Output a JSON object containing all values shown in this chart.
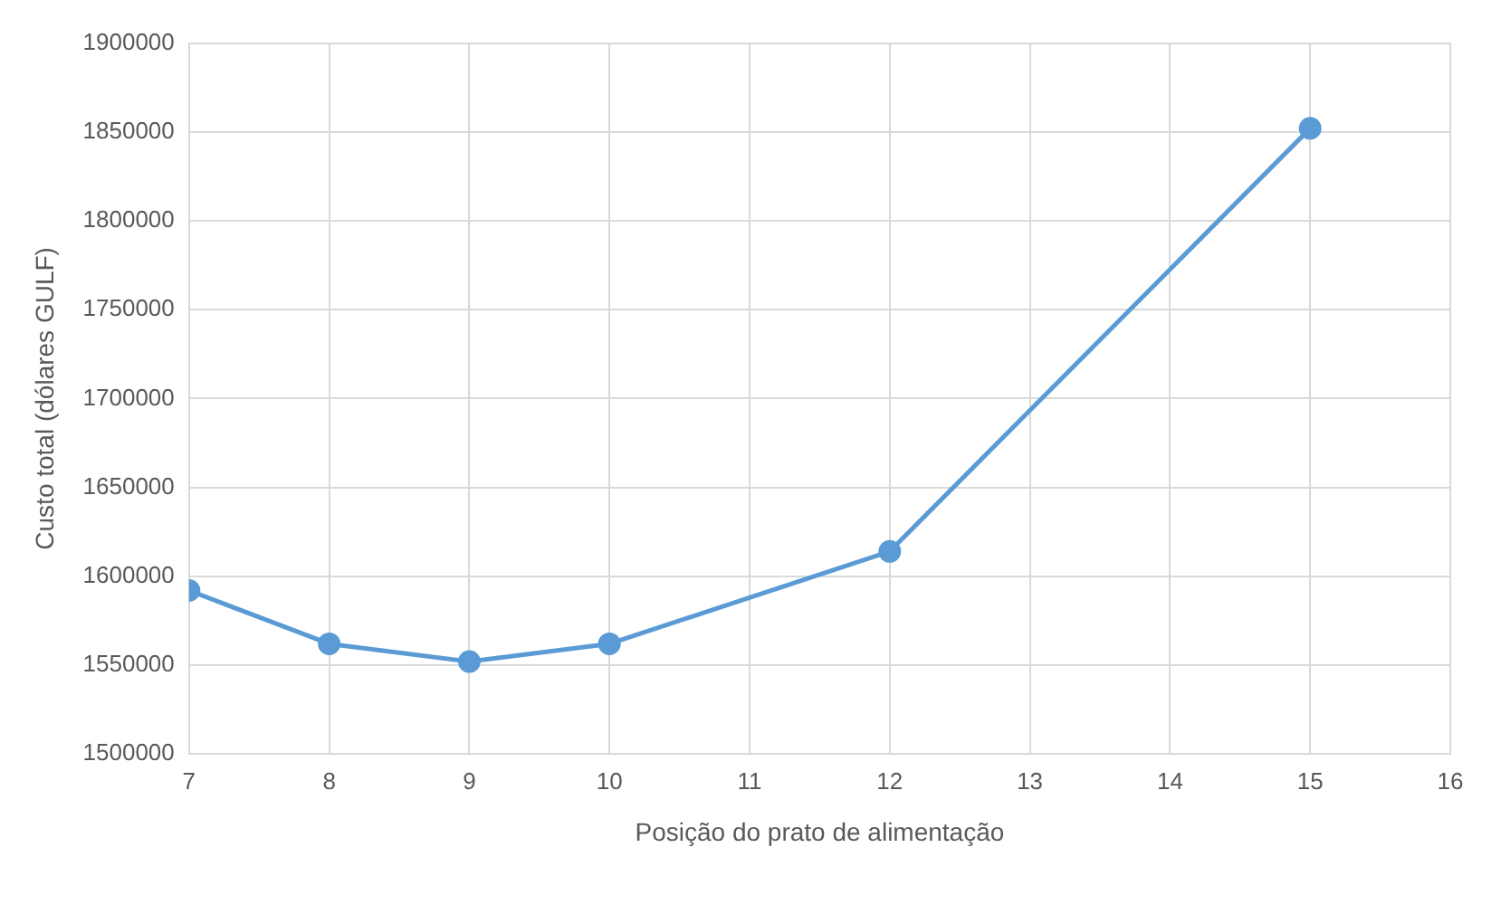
{
  "chart_data": {
    "type": "line",
    "xlabel": "Posição do prato de alimentação",
    "ylabel": "Custo total (dólares GULF)",
    "x": [
      7,
      8,
      9,
      10,
      12,
      15
    ],
    "series": [
      {
        "color": "#5b9bd5",
        "values": [
          1592000,
          1562000,
          1552000,
          1562000,
          1614000,
          1852000
        ]
      }
    ],
    "xlim": [
      7,
      16
    ],
    "xticks": [
      7,
      8,
      9,
      10,
      11,
      12,
      13,
      14,
      15,
      16
    ],
    "ylim": [
      1500000,
      1900000
    ],
    "yticks": [
      1500000,
      1550000,
      1600000,
      1650000,
      1700000,
      1750000,
      1800000,
      1850000,
      1900000
    ],
    "grid": true,
    "legend": false,
    "marker": "circle",
    "line_style": "solid"
  }
}
